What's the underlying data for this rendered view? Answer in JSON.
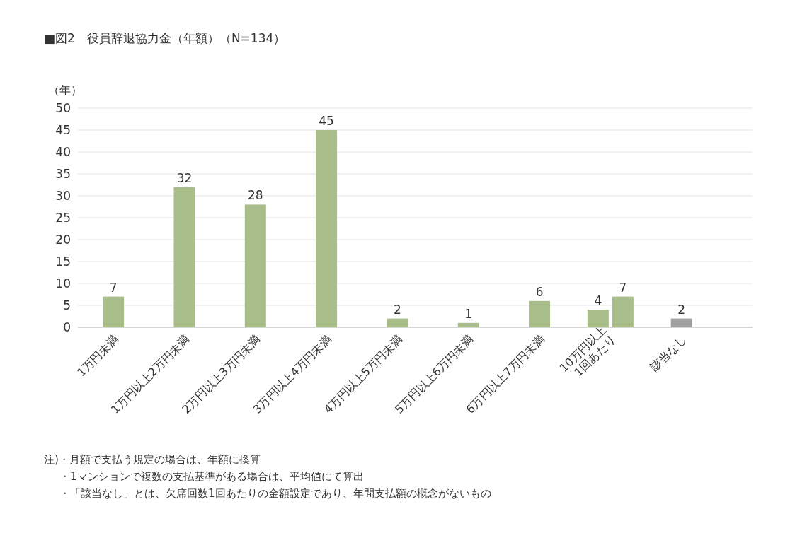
{
  "chart_data": {
    "type": "bar",
    "title": "■図2　役員辞退協力金（年額）（N=134）",
    "ylabel": "（年）",
    "categories": [
      "1万円未満",
      "1万円以上2万円未満",
      "2万円以上3万円未満",
      "3万円以上4万円未満",
      "4万円以上5万円未満",
      "5万円以上6万円未満",
      "6万円以上7万円未満",
      "10万円以上\n1回あたり",
      "該当なし"
    ],
    "series": [
      {
        "colors": [
          "#a9bd8a",
          "#a9bd8a",
          "#a9bd8a",
          "#a9bd8a",
          "#a9bd8a",
          "#a9bd8a",
          "#a9bd8a",
          "#a9bd8a",
          "#a0a0a0"
        ],
        "values": [
          7,
          32,
          28,
          45,
          2,
          1,
          6,
          4,
          2
        ]
      },
      {
        "color": "#a9bd8a",
        "values": [
          null,
          null,
          null,
          null,
          null,
          null,
          null,
          7,
          null
        ]
      }
    ],
    "ylim": [
      0,
      50
    ],
    "yticks": [
      0,
      5,
      10,
      15,
      20,
      25,
      30,
      35,
      40,
      45,
      50
    ],
    "grid": "y",
    "data_labels": true,
    "annotations": [
      "注)・月額で支払う規定の場合は、年額に換算",
      "・1マンションで複数の支払基準がある場合は、平均値にて算出",
      "・「該当なし」とは、欠席回数1回あたりの金額設定であり、年間支払額の概念がないもの"
    ]
  }
}
